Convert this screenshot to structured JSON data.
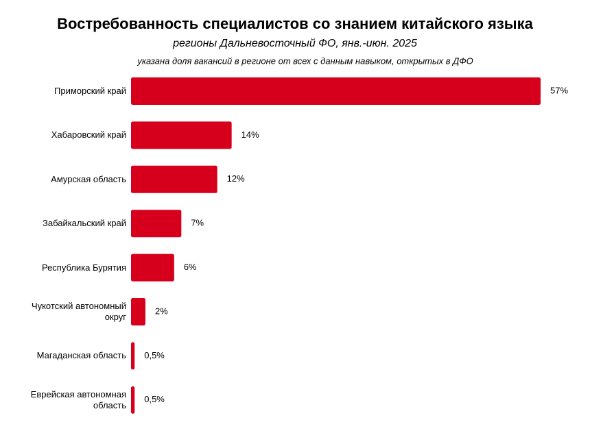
{
  "chart_data": {
    "type": "bar",
    "orientation": "horizontal",
    "title": "Востребованность специалистов со знанием китайского языка",
    "subtitle": "регионы Дальневосточный ФО, янв.-июн. 2025",
    "note": "указана доля вакансий в регионе от всех с данным навыком, открытых в ДФО",
    "categories": [
      "Приморский край",
      "Хабаровский край",
      "Амурская область",
      "Забайкальский край",
      "Республика Бурятия",
      "Чукотский автономный округ",
      "Магаданская область",
      "Еврейская автономная область"
    ],
    "values": [
      57,
      14,
      12,
      7,
      6,
      2,
      0.5,
      0.5
    ],
    "value_labels": [
      "57%",
      "14%",
      "12%",
      "7%",
      "6%",
      "2%",
      "0,5%",
      "0,5%"
    ],
    "color": "#d6001c"
  }
}
